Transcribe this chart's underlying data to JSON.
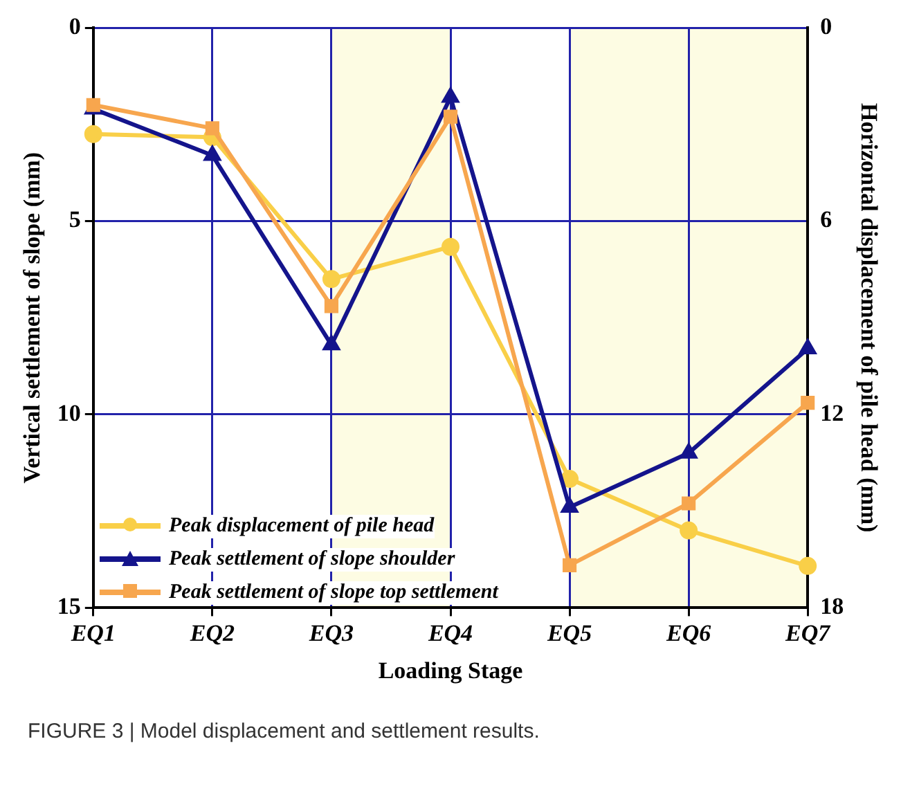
{
  "chart_data": {
    "type": "line",
    "xlabel": "Loading Stage",
    "ylabel": "Vertical settlement of slope (mm)",
    "y2label": "Horizontal displacement of pile head (mm)",
    "categories": [
      "EQ1",
      "EQ2",
      "EQ3",
      "EQ4",
      "EQ5",
      "EQ6",
      "EQ7"
    ],
    "series": [
      {
        "name": "Peak displacement of pile head",
        "color": "#f9cf48",
        "axis": "y2",
        "marker": "circle",
        "values": [
          3.3,
          3.4,
          7.8,
          6.8,
          14.0,
          15.6,
          16.7
        ]
      },
      {
        "name": "Peak settlement of slope shoulder",
        "color": "#14148c",
        "marker": "triangle",
        "values": [
          2.1,
          3.3,
          8.2,
          1.8,
          12.4,
          11.0,
          8.3
        ]
      },
      {
        "name": "Peak settlement of slope top settlement",
        "color": "#f7a64e",
        "marker": "square",
        "values": [
          2.0,
          2.6,
          7.2,
          2.3,
          13.9,
          12.3,
          9.7
        ]
      }
    ],
    "ylim": [
      15,
      0
    ],
    "yticks": [
      0,
      5,
      10,
      15
    ],
    "y2lim": [
      18,
      0
    ],
    "y2ticks": [
      0,
      6,
      12,
      18
    ],
    "bands": [
      {
        "axis": "x",
        "from": "EQ3",
        "to": "EQ4",
        "color": "#fdfce3"
      },
      {
        "axis": "x",
        "from": "EQ5",
        "to": "EQ7",
        "color": "#fdfce3"
      }
    ],
    "grid": true,
    "legend": "bottom left",
    "line_style": "solid",
    "annotations": [
      "FIGURE 3 | Model displacement and settlement results."
    ]
  }
}
